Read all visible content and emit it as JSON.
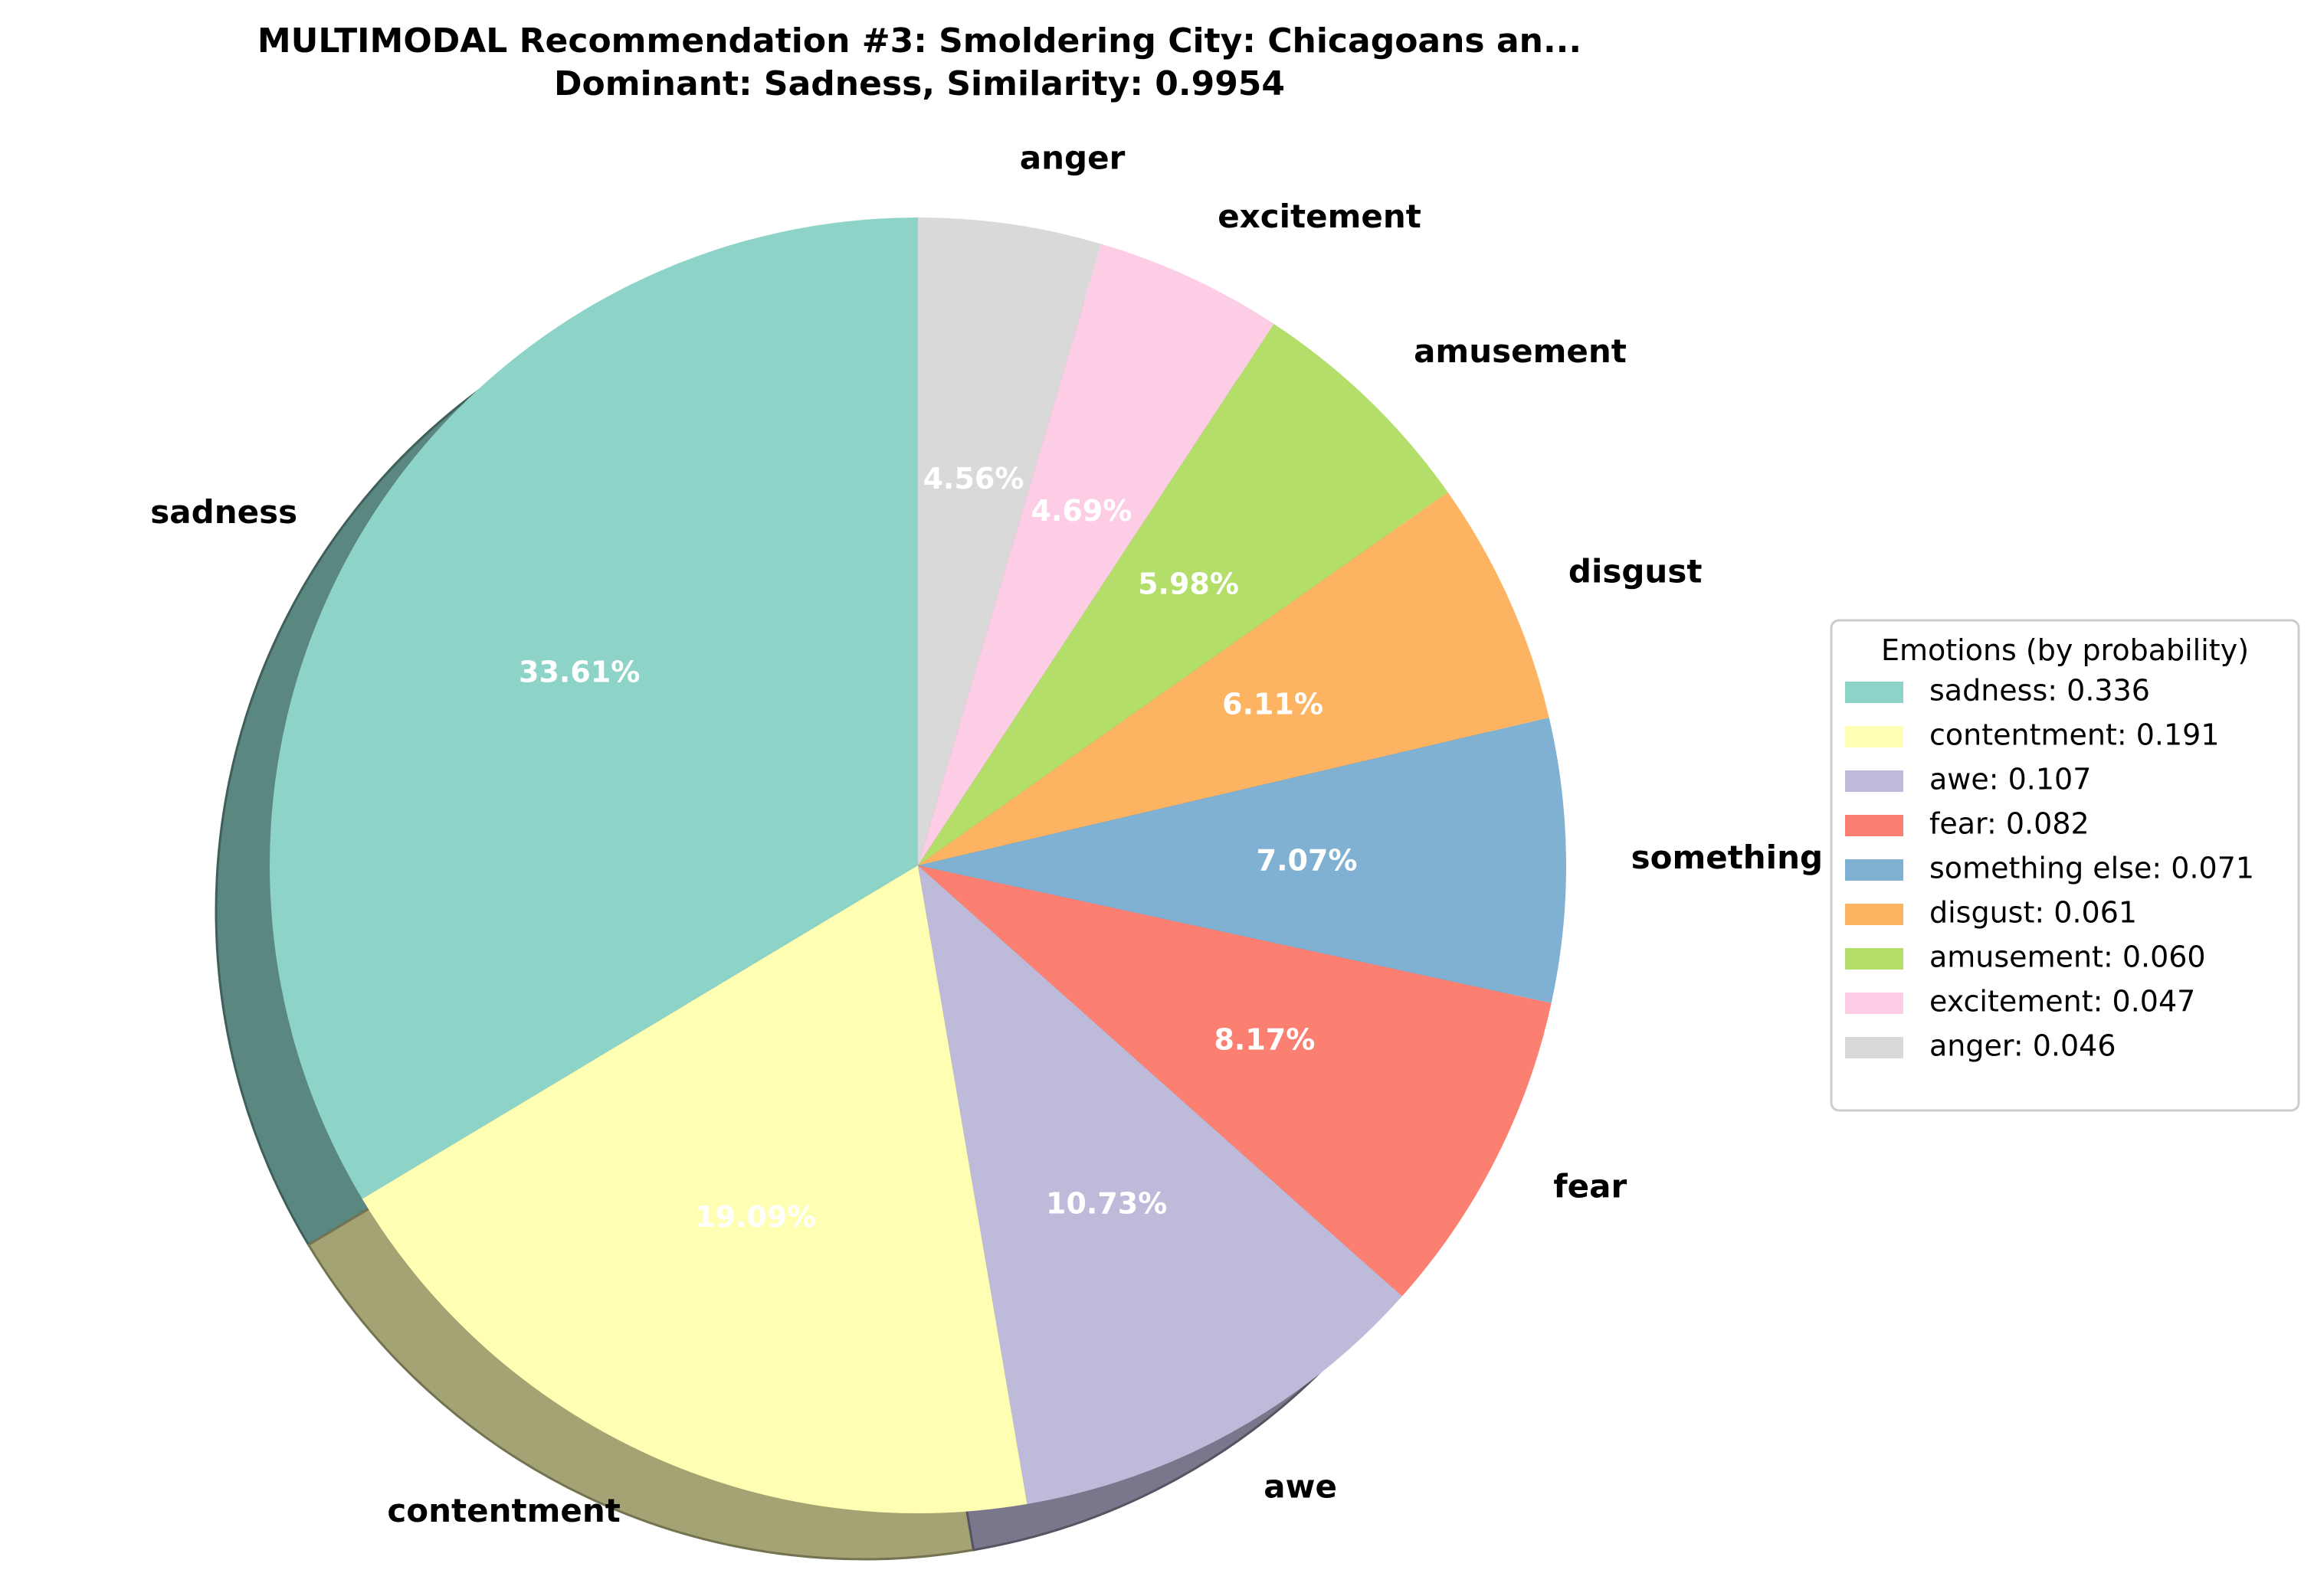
{
  "chart_data": {
    "type": "pie",
    "title_line1": "MULTIMODAL Recommendation #3: Smoldering City: Chicagoans an...",
    "title_line2": "Dominant: Sadness, Similarity: 0.9954",
    "start_angle_deg": 90,
    "direction": "counterclockwise",
    "shadow": true,
    "slices": [
      {
        "label": "sadness",
        "value": 0.3361,
        "pct_text": "33.61%",
        "legend_text": "sadness: 0.336",
        "color": "#8dd3c7"
      },
      {
        "label": "contentment",
        "value": 0.1909,
        "pct_text": "19.09%",
        "legend_text": "contentment: 0.191",
        "color": "#ffffb3"
      },
      {
        "label": "awe",
        "value": 0.1073,
        "pct_text": "10.73%",
        "legend_text": "awe: 0.107",
        "color": "#bebada"
      },
      {
        "label": "fear",
        "value": 0.0817,
        "pct_text": "8.17%",
        "legend_text": "fear: 0.082",
        "color": "#fb8072"
      },
      {
        "label": "something else",
        "value": 0.0707,
        "pct_text": "7.07%",
        "legend_text": "something else: 0.071",
        "color": "#80b1d3"
      },
      {
        "label": "disgust",
        "value": 0.0611,
        "pct_text": "6.11%",
        "legend_text": "disgust: 0.061",
        "color": "#fdb462"
      },
      {
        "label": "amusement",
        "value": 0.0598,
        "pct_text": "5.98%",
        "legend_text": "amusement: 0.060",
        "color": "#b3de69"
      },
      {
        "label": "excitement",
        "value": 0.0469,
        "pct_text": "4.69%",
        "legend_text": "excitement: 0.047",
        "color": "#fccde5"
      },
      {
        "label": "anger",
        "value": 0.0456,
        "pct_text": "4.56%",
        "legend_text": "anger: 0.046",
        "color": "#d9d9d9"
      }
    ],
    "legend": {
      "title": "Emotions (by probability)",
      "placement": "right"
    }
  }
}
